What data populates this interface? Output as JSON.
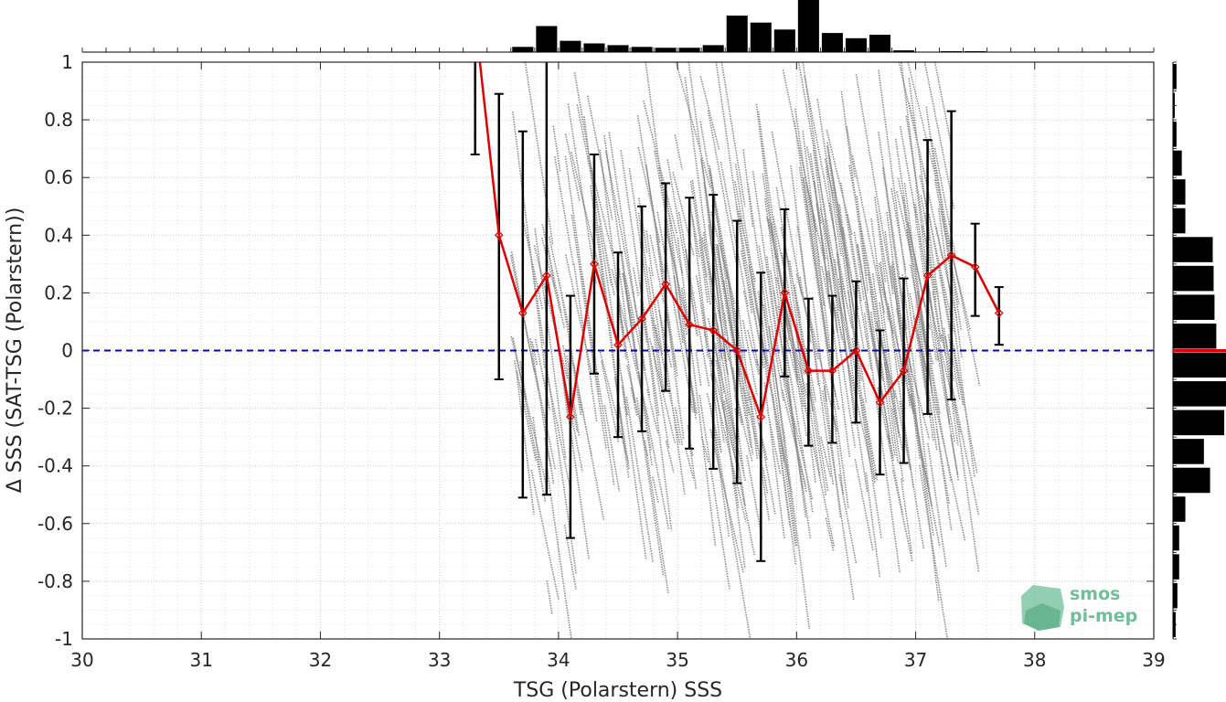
{
  "chart_data": {
    "type": "scatter",
    "xlabel": "TSG (Polarstern) SSS",
    "ylabel": "Δ SSS (SAT-TSG (Polarstern))",
    "xlim": [
      30,
      39
    ],
    "ylim": [
      -1,
      1
    ],
    "xticks": [
      "30",
      "31",
      "32",
      "33",
      "34",
      "35",
      "36",
      "37",
      "38",
      "39"
    ],
    "yticks": [
      "-1",
      "-0.8",
      "-0.6",
      "-0.4",
      "-0.2",
      "0",
      "0.2",
      "0.4",
      "0.6",
      "0.8",
      "1"
    ],
    "grid": true,
    "reference_line": {
      "y": 0,
      "style": "dashed",
      "color": "#0000cc"
    },
    "mean_line": {
      "color": "#dd0000",
      "x": [
        33.3,
        33.5,
        33.7,
        33.9,
        34.1,
        34.3,
        34.5,
        34.7,
        34.9,
        35.1,
        35.3,
        35.5,
        35.7,
        35.9,
        36.1,
        36.3,
        36.5,
        36.7,
        36.9,
        37.1,
        37.3,
        37.5,
        37.7
      ],
      "mean": [
        1.15,
        0.4,
        0.13,
        0.26,
        -0.23,
        0.3,
        0.02,
        0.11,
        0.23,
        0.09,
        0.07,
        0.0,
        -0.23,
        0.2,
        -0.07,
        -0.07,
        0.0,
        -0.18,
        -0.07,
        0.26,
        0.33,
        0.29,
        0.13
      ],
      "err_low": [
        0.68,
        -0.1,
        -0.51,
        -0.5,
        -0.65,
        -0.08,
        -0.3,
        -0.28,
        -0.14,
        -0.34,
        -0.41,
        -0.46,
        -0.73,
        -0.09,
        -0.33,
        -0.32,
        -0.25,
        -0.43,
        -0.39,
        -0.22,
        -0.17,
        0.12,
        0.02
      ],
      "err_high": [
        1.6,
        0.89,
        0.76,
        1.05,
        0.19,
        0.68,
        0.34,
        0.5,
        0.58,
        0.53,
        0.54,
        0.45,
        0.27,
        0.49,
        0.18,
        0.19,
        0.24,
        0.07,
        0.25,
        0.73,
        0.83,
        0.44,
        0.22
      ]
    },
    "scatter": {
      "color": "#808080",
      "x_range": [
        33.7,
        37.4
      ]
    },
    "top_histogram": {
      "bin_centers": [
        33.7,
        33.9,
        34.1,
        34.3,
        34.5,
        34.7,
        34.9,
        35.1,
        35.3,
        35.5,
        35.7,
        35.9,
        36.1,
        36.3,
        36.5,
        36.7,
        36.9,
        37.1,
        37.3,
        37.5
      ],
      "counts": [
        6,
        30,
        13,
        10,
        8,
        6,
        5,
        5,
        8,
        42,
        34,
        26,
        60,
        22,
        16,
        20,
        2,
        0,
        1,
        1
      ]
    },
    "right_histogram": {
      "bin_centers": [
        0.95,
        0.85,
        0.75,
        0.65,
        0.55,
        0.45,
        0.35,
        0.25,
        0.15,
        0.05,
        -0.05,
        -0.15,
        -0.25,
        -0.35,
        -0.45,
        -0.55,
        -0.65,
        -0.75,
        -0.85,
        -0.95
      ],
      "counts": [
        4,
        2,
        4,
        10,
        14,
        14,
        45,
        46,
        47,
        49,
        60,
        60,
        58,
        35,
        42,
        14,
        7,
        7,
        5,
        3
      ]
    }
  },
  "logo": {
    "line1": "smos",
    "line2": "pi-mep"
  },
  "colors": {
    "scatter": "#808080",
    "mean": "#dd0000",
    "errorbar": "#000000",
    "zero_line": "#0000cc",
    "histogram": "#000000",
    "logo": "#6fbf9a"
  }
}
